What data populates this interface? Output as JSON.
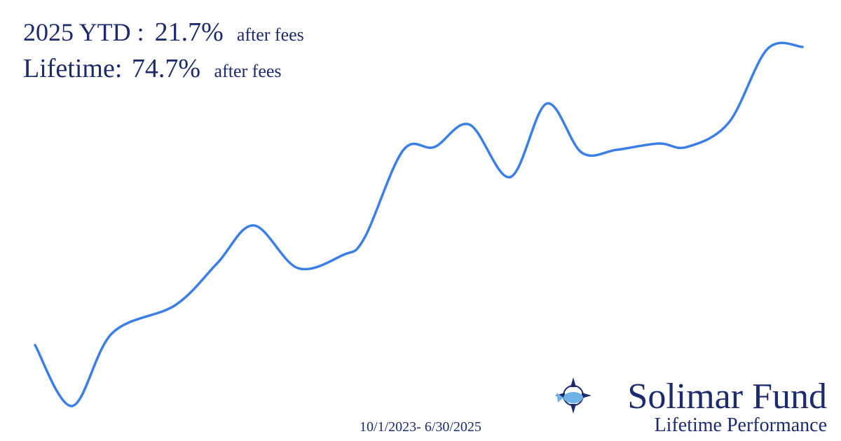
{
  "headline": {
    "ytd_label": "2025 YTD :",
    "ytd_value": "21.7%",
    "ytd_note": "after fees",
    "lifetime_label": "Lifetime:",
    "lifetime_value": "74.7%",
    "lifetime_note": "after fees"
  },
  "period": "10/1/2023- 6/30/2025",
  "brand": {
    "name": "Solimar Fund",
    "subtitle": "Lifetime Performance"
  }
}
